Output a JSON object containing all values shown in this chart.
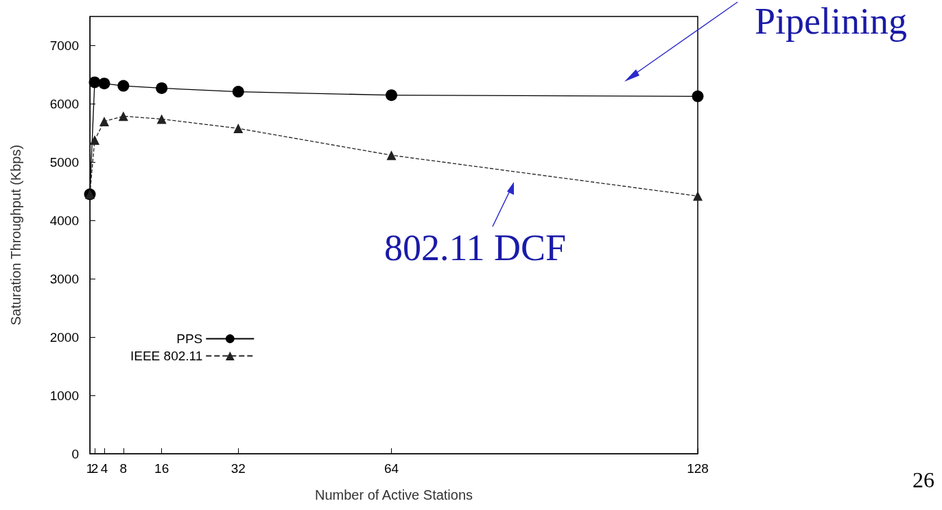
{
  "chart_data": {
    "type": "line",
    "xlabel": "Number of Active Stations",
    "ylabel": "Saturation Throughput (Kbps)",
    "xlim": [
      1,
      128
    ],
    "xticks": [
      1,
      2,
      4,
      8,
      16,
      32,
      64,
      128
    ],
    "ylim": [
      0,
      7500
    ],
    "yticks": [
      0,
      1000,
      2000,
      3000,
      4000,
      5000,
      6000,
      7000
    ],
    "x": [
      1,
      2,
      4,
      8,
      16,
      32,
      64,
      128
    ],
    "series": [
      {
        "name": "PPS",
        "color": "#000000",
        "marker": "circle",
        "line_style": "solid",
        "values": [
          4450,
          6370,
          6350,
          6310,
          6270,
          6210,
          6150,
          6130
        ]
      },
      {
        "name": "IEEE 802.11",
        "color": "#222222",
        "marker": "triangle",
        "line_style": "dashed",
        "values": [
          4450,
          5380,
          5700,
          5790,
          5740,
          5580,
          5120,
          4420
        ]
      }
    ],
    "grid": false,
    "legend": "bottom left",
    "annotations": [
      "Pipelining",
      "802.11 DCF",
      "26"
    ]
  }
}
